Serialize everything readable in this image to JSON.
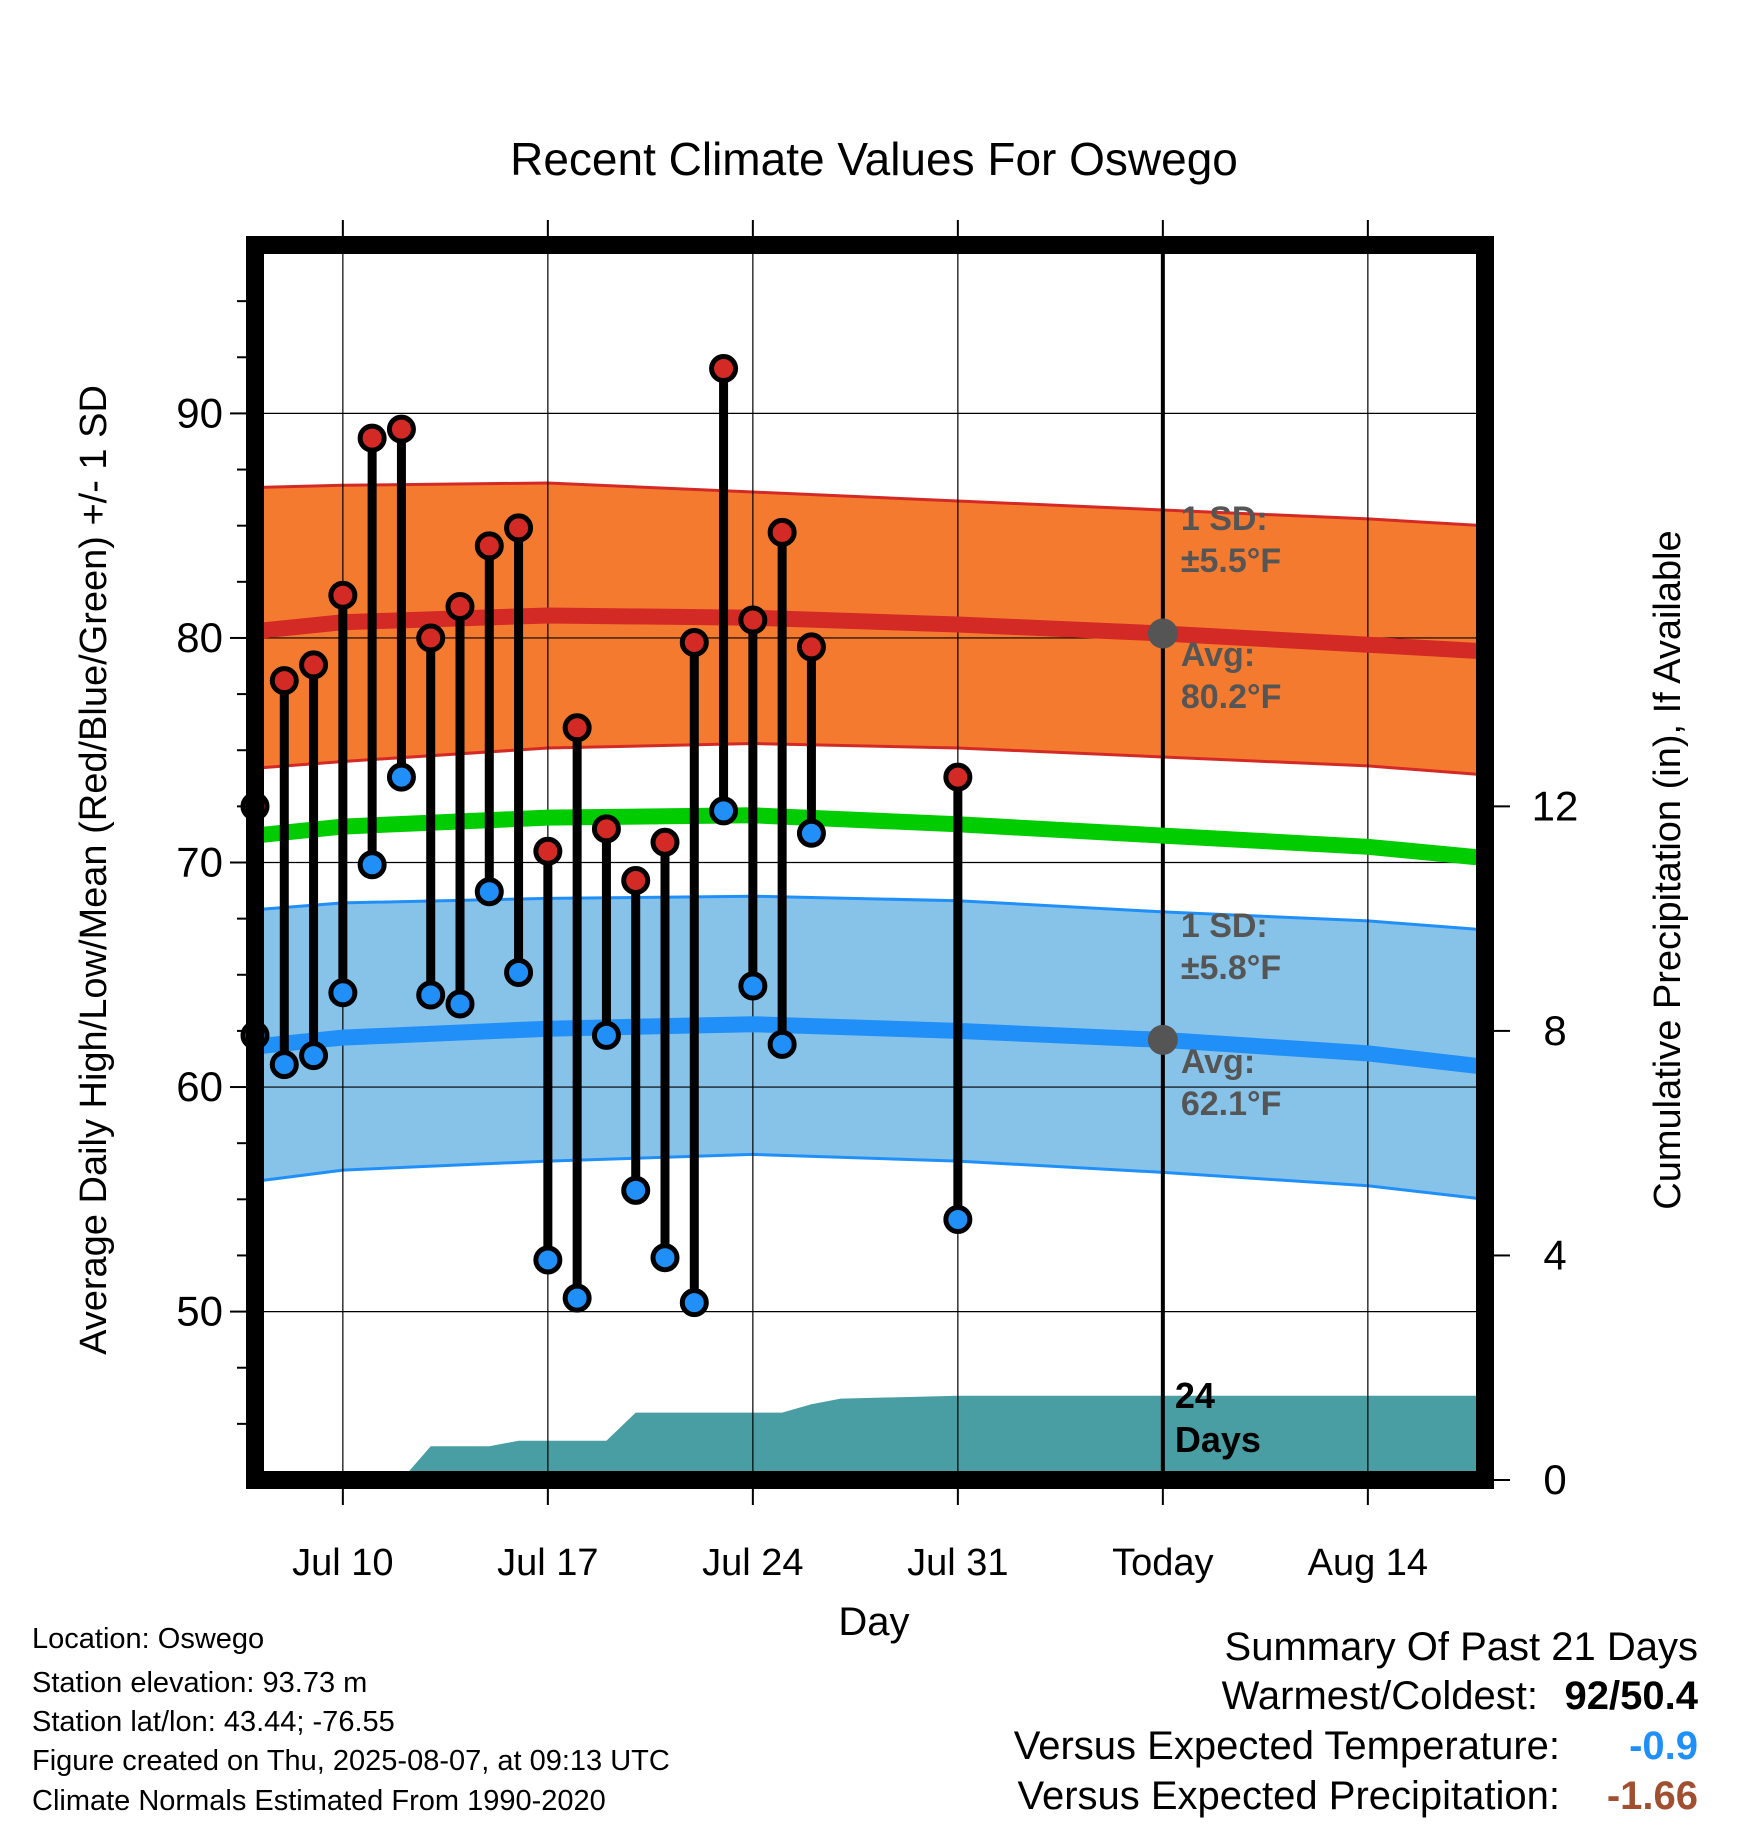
{
  "chart_data": {
    "type": "line",
    "title": "Recent Climate Values For Oswego",
    "xlabel": "Day",
    "ylabel": "Average Daily High/Low/Mean (Red/Blue/Green) +/- 1 SD",
    "y2label": "Cumulative Precipitation (in), If Available",
    "x_tick_labels": [
      "Jul 10",
      "Jul 17",
      "Jul 24",
      "Jul 31",
      "Today",
      "Aug 14"
    ],
    "y_ticks": [
      50,
      60,
      70,
      80,
      90
    ],
    "y2_ticks": [
      0,
      4,
      8,
      12
    ],
    "ylim": [
      42.5,
      97.5
    ],
    "y2lim": [
      0,
      22
    ],
    "x_dates": [
      "2025-07-07",
      "2025-08-18"
    ],
    "today": "2025-08-07",
    "observed": {
      "dates": [
        "2025-07-07",
        "2025-07-08",
        "2025-07-09",
        "2025-07-10",
        "2025-07-11",
        "2025-07-12",
        "2025-07-13",
        "2025-07-14",
        "2025-07-15",
        "2025-07-16",
        "2025-07-17",
        "2025-07-18",
        "2025-07-19",
        "2025-07-20",
        "2025-07-21",
        "2025-07-22",
        "2025-07-23",
        "2025-07-24",
        "2025-07-25",
        "2025-07-26",
        "2025-07-27",
        "2025-07-31"
      ],
      "high": [
        72.5,
        78.1,
        78.8,
        81.9,
        88.9,
        89.3,
        80.0,
        81.4,
        84.1,
        84.9,
        70.5,
        76.0,
        71.5,
        69.2,
        70.9,
        79.8,
        92.0,
        80.8,
        84.7,
        79.6,
        null,
        73.8
      ],
      "low": [
        62.3,
        61.0,
        61.4,
        64.2,
        69.9,
        73.8,
        64.1,
        63.7,
        68.7,
        65.1,
        52.3,
        50.6,
        62.3,
        55.4,
        52.4,
        50.4,
        72.3,
        64.5,
        61.9,
        71.3,
        null,
        54.1
      ]
    },
    "normals": {
      "dates": [
        "2025-07-07",
        "2025-07-10",
        "2025-07-17",
        "2025-07-24",
        "2025-07-31",
        "2025-08-07",
        "2025-08-14",
        "2025-08-18"
      ],
      "high_mean": [
        80.3,
        80.7,
        81.0,
        80.9,
        80.6,
        80.2,
        79.7,
        79.4
      ],
      "high_upper": [
        86.7,
        86.8,
        86.9,
        86.5,
        86.1,
        85.7,
        85.3,
        85.0
      ],
      "high_lower": [
        74.2,
        74.5,
        75.1,
        75.3,
        75.1,
        74.7,
        74.3,
        73.9
      ],
      "mean": [
        71.2,
        71.6,
        72.0,
        72.1,
        71.7,
        71.2,
        70.7,
        70.2
      ],
      "low_mean": [
        61.8,
        62.2,
        62.6,
        62.8,
        62.5,
        62.1,
        61.5,
        60.9
      ],
      "low_upper": [
        67.9,
        68.2,
        68.4,
        68.5,
        68.3,
        67.8,
        67.4,
        67.0
      ],
      "low_lower": [
        55.8,
        56.3,
        56.7,
        57.0,
        56.7,
        56.2,
        55.6,
        55.0
      ]
    },
    "precip": {
      "dates": [
        "2025-07-07",
        "2025-07-12",
        "2025-07-13",
        "2025-07-15",
        "2025-07-16",
        "2025-07-19",
        "2025-07-20",
        "2025-07-24",
        "2025-07-25",
        "2025-07-26",
        "2025-07-27",
        "2025-07-31",
        "2025-08-18"
      ],
      "cumulative": [
        0.0,
        0.0,
        0.6,
        0.6,
        0.7,
        0.7,
        1.2,
        1.2,
        1.2,
        1.35,
        1.45,
        1.5,
        1.5
      ]
    },
    "annotations": {
      "high_sd_title": "1 SD:",
      "high_sd_value": "±5.5°F",
      "high_avg_title": "Avg:",
      "high_avg_value": "80.2°F",
      "low_sd_title": "1 SD:",
      "low_sd_value": "±5.8°F",
      "low_avg_title": "Avg:",
      "low_avg_value": "62.1°F",
      "days_count": "24",
      "days_word": "Days"
    },
    "colors": {
      "high_band": "#f47a30",
      "high_line": "#d42a26",
      "low_band": "#87c2e8",
      "low_line": "#2090f8",
      "mean_line": "#00cc00",
      "precip": "#489ea3",
      "high_dot": "#d42a26",
      "low_dot": "#2090f8"
    }
  },
  "info": {
    "location": "Location: Oswego",
    "elevation": "Station elevation: 93.73 m",
    "latlon": "Station lat/lon: 43.44; -76.55",
    "created": "Figure created on Thu, 2025-08-07, at 09:13 UTC",
    "normals": "Climate Normals Estimated From 1990-2020"
  },
  "summary": {
    "title": "Summary Of Past 21 Days",
    "warmest_label": "Warmest/Coldest:",
    "warmest_value": "92/50.4",
    "temp_label": "Versus Expected Temperature:",
    "temp_value": "-0.9",
    "temp_color": "#2090f8",
    "precip_label": "Versus Expected Precipitation:",
    "precip_value": "-1.66",
    "precip_color": "#a05030"
  }
}
